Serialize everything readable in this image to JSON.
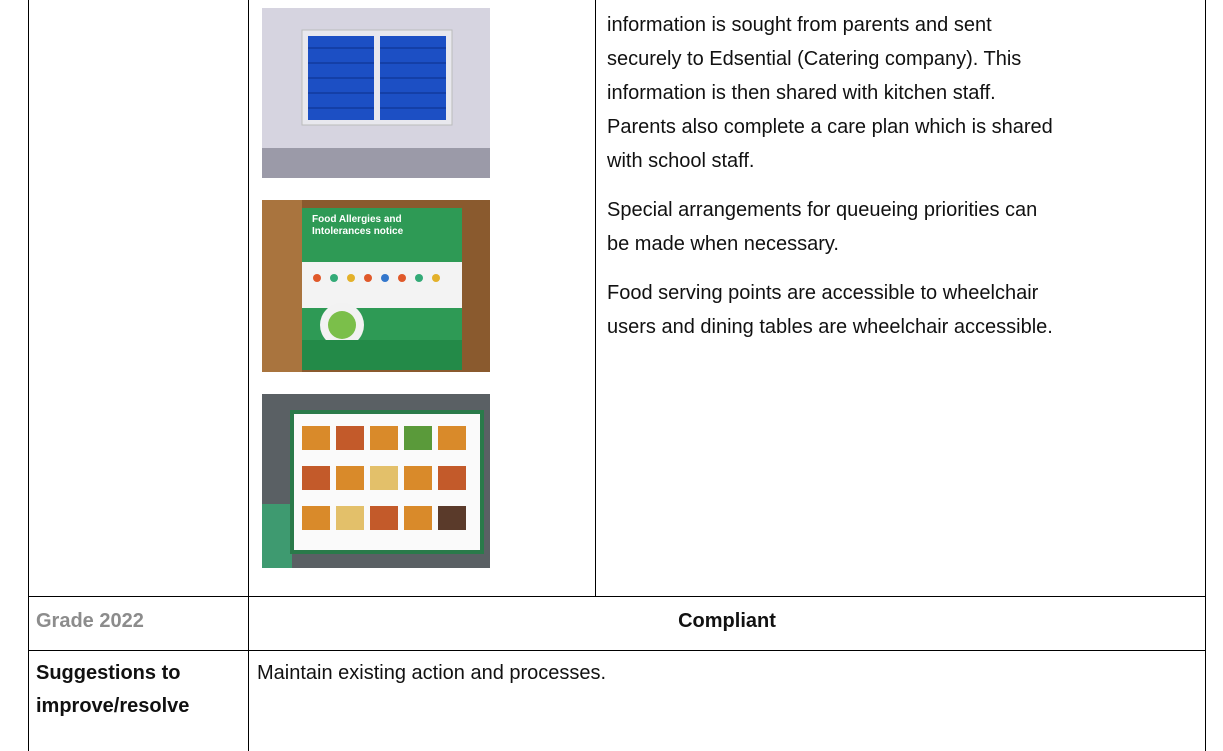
{
  "body": {
    "paragraphs": [
      [
        "information is sought from parents and sent",
        "securely to Edsential (Catering company). This",
        "information is then shared with kitchen staff.",
        "Parents also complete a care plan which is shared",
        "with school staff."
      ],
      [
        "Special arrangements for queueing priorities can",
        "be made when necessary."
      ],
      [
        "Food serving points are accessible to wheelchair",
        "users and dining tables are wheelchair accessible."
      ]
    ],
    "poster_title": [
      "Food Allergies and",
      "Intolerances notice"
    ],
    "grade_label": "Grade 2022",
    "grade_value": "Compliant",
    "suggestions_label": [
      "Suggestions to",
      "improve/resolve"
    ],
    "suggestions_text": "Maintain existing action and processes."
  }
}
